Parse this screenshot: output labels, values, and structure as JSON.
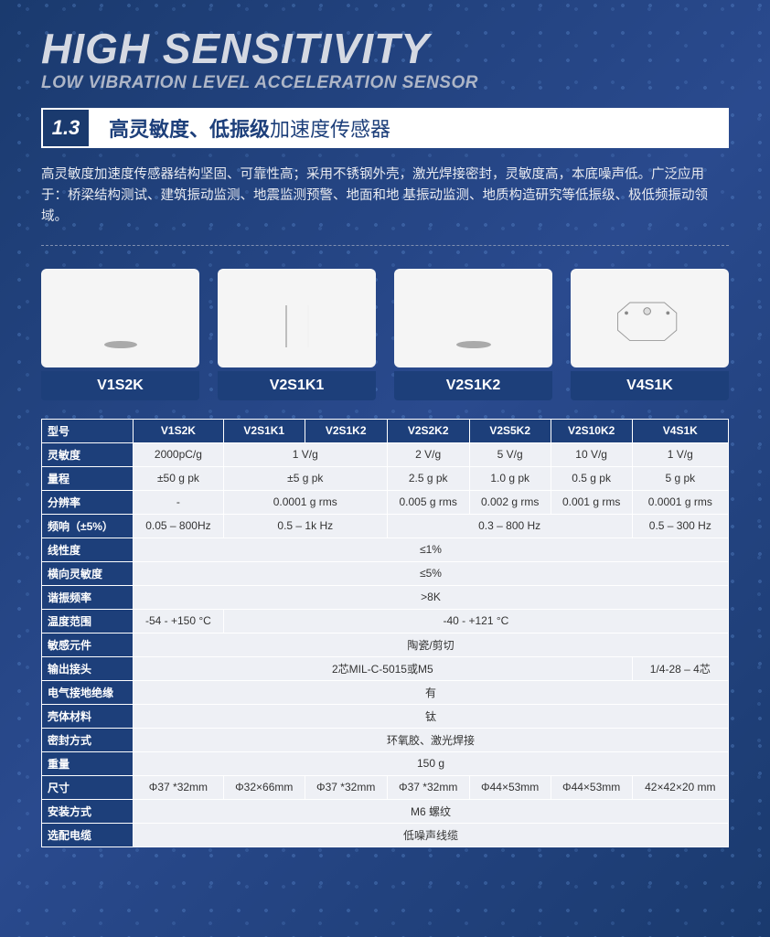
{
  "header": {
    "title_en": "HIGH SENSITIVITY",
    "subtitle_en": "LOW VIBRATION LEVEL ACCELERATION SENSOR",
    "section_num": "1.3",
    "title_cn_bold": "高灵敏度、低振级",
    "title_cn_light": "加速度传感器"
  },
  "description": "高灵敏度加速度传感器结构坚固、可靠性高；采用不锈钢外壳，激光焊接密封，灵敏度高，本底噪声低。广泛应用于：桥梁结构测试、建筑振动监测、地震监测预警、地面和地 基振动监测、地质构造研究等低振级、极低频振动领域。",
  "products": [
    {
      "model": "V1S2K",
      "shape": "cyl1"
    },
    {
      "model": "V2S1K1",
      "shape": "hex"
    },
    {
      "model": "V2S1K2",
      "shape": "cyl2"
    },
    {
      "model": "V4S1K",
      "shape": "box"
    }
  ],
  "spec": {
    "headers": [
      "型号",
      "V1S2K",
      "V2S1K1",
      "V2S1K2",
      "V2S2K2",
      "V2S5K2",
      "V2S10K2",
      "V4S1K"
    ],
    "rows": [
      {
        "label": "灵敏度",
        "cells": [
          {
            "v": "2000pC/g",
            "span": 1
          },
          {
            "v": "1 V/g",
            "span": 2
          },
          {
            "v": "2 V/g",
            "span": 1
          },
          {
            "v": "5 V/g",
            "span": 1
          },
          {
            "v": "10 V/g",
            "span": 1
          },
          {
            "v": "1 V/g",
            "span": 1
          }
        ]
      },
      {
        "label": "量程",
        "cells": [
          {
            "v": "±50 g pk",
            "span": 1
          },
          {
            "v": "±5 g pk",
            "span": 2
          },
          {
            "v": "2.5 g pk",
            "span": 1
          },
          {
            "v": "1.0 g pk",
            "span": 1
          },
          {
            "v": "0.5 g pk",
            "span": 1
          },
          {
            "v": "5 g pk",
            "span": 1
          }
        ]
      },
      {
        "label": "分辨率",
        "cells": [
          {
            "v": "-",
            "span": 1
          },
          {
            "v": "0.0001 g rms",
            "span": 2
          },
          {
            "v": "0.005 g rms",
            "span": 1
          },
          {
            "v": "0.002 g rms",
            "span": 1
          },
          {
            "v": "0.001 g rms",
            "span": 1
          },
          {
            "v": "0.0001 g rms",
            "span": 1
          }
        ]
      },
      {
        "label": "频响（±5%）",
        "cells": [
          {
            "v": "0.05 – 800Hz",
            "span": 1
          },
          {
            "v": "0.5 – 1k Hz",
            "span": 2
          },
          {
            "v": "0.3 – 800 Hz",
            "span": 3
          },
          {
            "v": "0.5 – 300 Hz",
            "span": 1
          }
        ]
      },
      {
        "label": "线性度",
        "cells": [
          {
            "v": "≤1%",
            "span": 7
          }
        ]
      },
      {
        "label": "横向灵敏度",
        "cells": [
          {
            "v": "≤5%",
            "span": 7
          }
        ]
      },
      {
        "label": "谐振频率",
        "cells": [
          {
            "v": ">8K",
            "span": 7
          }
        ]
      },
      {
        "label": "温度范围",
        "cells": [
          {
            "v": "-54 - +150 °C",
            "span": 1
          },
          {
            "v": "-40 - +121 °C",
            "span": 6
          }
        ]
      },
      {
        "label": "敏感元件",
        "cells": [
          {
            "v": "陶瓷/剪切",
            "span": 7
          }
        ]
      },
      {
        "label": "输出接头",
        "cells": [
          {
            "v": "2芯MIL-C-5015或M5",
            "span": 6
          },
          {
            "v": "1/4-28 – 4芯",
            "span": 1
          }
        ]
      },
      {
        "label": "电气接地绝缘",
        "cells": [
          {
            "v": "有",
            "span": 7
          }
        ]
      },
      {
        "label": "壳体材料",
        "cells": [
          {
            "v": "钛",
            "span": 7
          }
        ]
      },
      {
        "label": "密封方式",
        "cells": [
          {
            "v": "环氧胶、激光焊接",
            "span": 7
          }
        ]
      },
      {
        "label": "重量",
        "cells": [
          {
            "v": "150 g",
            "span": 7
          }
        ]
      },
      {
        "label": "尺寸",
        "cells": [
          {
            "v": "Φ37 *32mm",
            "span": 1
          },
          {
            "v": "Φ32×66mm",
            "span": 1
          },
          {
            "v": "Φ37 *32mm",
            "span": 1
          },
          {
            "v": "Φ37 *32mm",
            "span": 1
          },
          {
            "v": "Φ44×53mm",
            "span": 1
          },
          {
            "v": "Φ44×53mm",
            "span": 1
          },
          {
            "v": "42×42×20 mm",
            "span": 1
          }
        ]
      },
      {
        "label": "安装方式",
        "cells": [
          {
            "v": "M6 螺纹",
            "span": 7
          }
        ]
      },
      {
        "label": "选配电缆",
        "cells": [
          {
            "v": "低噪声线缆",
            "span": 7
          }
        ]
      }
    ]
  },
  "colors": {
    "header_blue": "#1d3f7a",
    "cell_bg": "#eef0f5"
  }
}
